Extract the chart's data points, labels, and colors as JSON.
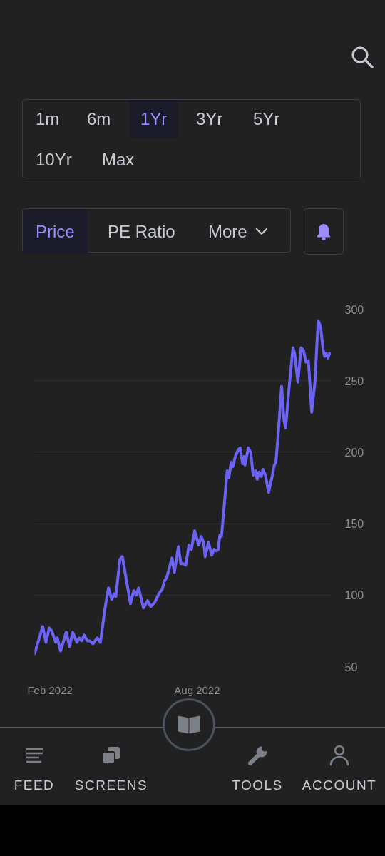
{
  "chart_data": {
    "type": "line",
    "x": [
      "2022-01-13",
      "2022-01-23",
      "2022-01-27",
      "2022-01-31",
      "2022-02-03",
      "2022-02-08",
      "2022-02-10",
      "2022-02-14",
      "2022-02-21",
      "2022-02-25",
      "2022-03-01",
      "2022-03-06",
      "2022-03-09",
      "2022-03-12",
      "2022-03-15",
      "2022-03-19",
      "2022-03-22",
      "2022-03-26",
      "2022-03-31",
      "2022-04-04",
      "2022-04-10",
      "2022-04-14",
      "2022-04-18",
      "2022-04-21",
      "2022-04-23",
      "2022-04-28",
      "2022-05-01",
      "2022-05-11",
      "2022-05-15",
      "2022-05-18",
      "2022-05-21",
      "2022-05-27",
      "2022-06-01",
      "2022-06-05",
      "2022-06-10",
      "2022-06-15",
      "2022-06-19",
      "2022-06-22",
      "2022-06-25",
      "2022-07-01",
      "2022-07-04",
      "2022-07-09",
      "2022-07-12",
      "2022-07-15",
      "2022-07-18",
      "2022-07-22",
      "2022-07-25",
      "2022-07-29",
      "2022-08-03",
      "2022-08-06",
      "2022-08-09",
      "2022-08-11",
      "2022-08-15",
      "2022-08-19",
      "2022-08-22",
      "2022-08-25",
      "2022-08-27",
      "2022-08-29",
      "2022-08-31",
      "2022-09-03",
      "2022-09-07",
      "2022-09-09",
      "2022-09-12",
      "2022-09-14",
      "2022-09-17",
      "2022-09-21",
      "2022-09-23",
      "2022-09-26",
      "2022-09-28",
      "2022-09-29",
      "2022-10-03",
      "2022-10-06",
      "2022-10-09",
      "2022-10-12",
      "2022-10-14",
      "2022-10-16",
      "2022-10-19",
      "2022-10-21",
      "2022-10-24",
      "2022-10-28",
      "2022-11-01",
      "2022-11-04",
      "2022-11-06",
      "2022-11-09",
      "2022-11-13",
      "2022-11-16",
      "2022-11-18",
      "2022-11-22",
      "2022-11-27",
      "2022-11-29",
      "2022-12-03",
      "2022-12-07",
      "2022-12-10",
      "2022-12-13",
      "2022-12-16",
      "2022-12-20",
      "2022-12-24",
      "2022-12-28",
      "2022-12-31",
      "2023-01-03",
      "2023-01-05",
      "2023-01-07",
      "2023-01-09",
      "2023-01-11"
    ],
    "series": [
      {
        "color": "#6c62f6",
        "values": [
          59,
          78,
          67,
          77,
          75,
          67,
          70,
          61,
          74,
          64,
          74,
          67,
          70,
          68,
          72,
          68,
          68,
          66,
          70,
          67,
          92,
          105,
          97,
          101,
          99,
          125,
          127,
          94,
          103,
          100,
          105,
          91,
          96,
          92,
          95,
          101,
          104,
          110,
          113,
          126,
          116,
          134,
          122,
          122,
          121,
          135,
          132,
          145,
          135,
          141,
          137,
          127,
          137,
          128,
          132,
          131,
          132,
          142,
          141,
          160,
          187,
          182,
          193,
          190,
          197,
          202,
          203,
          192,
          197,
          191,
          203,
          200,
          184,
          187,
          181,
          186,
          183,
          188,
          184,
          172,
          182,
          191,
          193,
          214,
          246,
          222,
          217,
          244,
          273,
          269,
          249,
          273,
          271,
          263,
          264,
          228,
          249,
          292,
          288,
          272,
          267,
          269,
          266,
          269
        ]
      }
    ],
    "xlim": [
      "2022-01-13",
      "2023-01-13"
    ],
    "xticks": [
      {
        "value": "2022-02-01",
        "label": "Feb 2022"
      },
      {
        "value": "2022-08-01",
        "label": "Aug 2022"
      }
    ],
    "ylim": [
      50,
      300
    ],
    "yticks": [
      50,
      100,
      150,
      200,
      250,
      300
    ],
    "grid": "y",
    "line_style": "solid",
    "annotations": [
      "1m",
      "6m",
      "1Yr",
      "3Yr",
      "5Yr",
      "10Yr",
      "Max",
      "Price",
      "PE Ratio",
      "More",
      "FEED",
      "SCREENS",
      "TOOLS",
      "ACCOUNT"
    ]
  }
}
